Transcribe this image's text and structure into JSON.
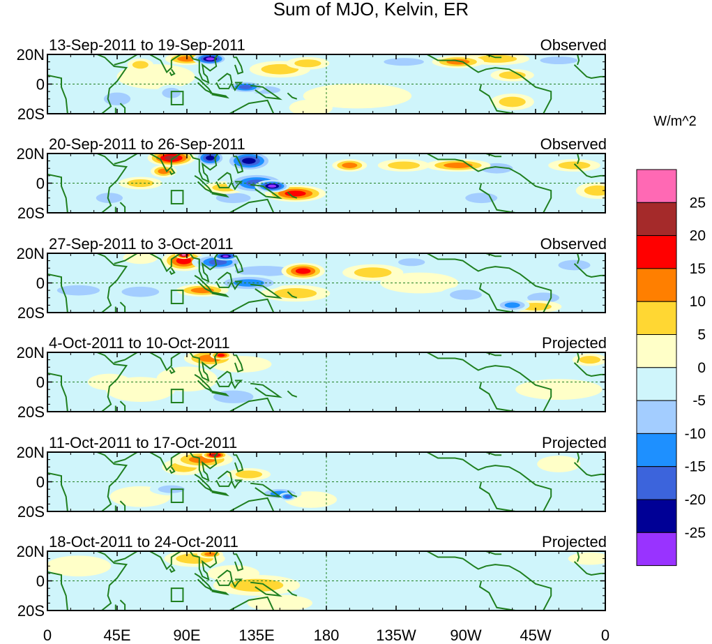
{
  "chart_data": {
    "type": "heatmap",
    "title": "Sum of MJO, Kelvin, ER",
    "units": "W/m^2",
    "x_tick_labels": [
      "0",
      "45E",
      "90E",
      "135E",
      "180",
      "135W",
      "90W",
      "45W",
      "0"
    ],
    "x_ticks_deg_east": [
      0,
      45,
      90,
      135,
      180,
      225,
      270,
      315,
      360
    ],
    "y_tick_labels": [
      "20N",
      "0",
      "20S"
    ],
    "y_ticks_lat": [
      20,
      0,
      -20
    ],
    "lat_range": [
      -20,
      20
    ],
    "lon_range": [
      0,
      360
    ],
    "panels": [
      {
        "period": "13-Sep-2011 to 19-Sep-2011",
        "status": "Observed"
      },
      {
        "period": "20-Sep-2011 to 26-Sep-2011",
        "status": "Observed"
      },
      {
        "period": "27-Sep-2011 to 3-Oct-2011",
        "status": "Observed"
      },
      {
        "period": "4-Oct-2011 to 10-Oct-2011",
        "status": "Projected"
      },
      {
        "period": "11-Oct-2011 to 17-Oct-2011",
        "status": "Projected"
      },
      {
        "period": "18-Oct-2011 to 24-Oct-2011",
        "status": "Projected"
      }
    ],
    "colorbar": {
      "label": "W/m^2",
      "tick_labels": [
        "25",
        "20",
        "15",
        "10",
        "5",
        "0",
        "-5",
        "-10",
        "-15",
        "-20",
        "-25"
      ],
      "bins_top_to_bottom": [
        {
          "range": ">25",
          "color": "#ff69b4"
        },
        {
          "range": "20 to 25",
          "color": "#a52a2a"
        },
        {
          "range": "15 to 20",
          "color": "#ff0000"
        },
        {
          "range": "10 to 15",
          "color": "#ff7f00"
        },
        {
          "range": "5 to 10",
          "color": "#ffd733"
        },
        {
          "range": "0 to 5",
          "color": "#ffffc8"
        },
        {
          "range": "-5 to 0",
          "color": "#cff5fb"
        },
        {
          "range": "-10 to -5",
          "color": "#a3cdff"
        },
        {
          "range": "-15 to -10",
          "color": "#1e90ff"
        },
        {
          "range": "-20 to -15",
          "color": "#3c64dc"
        },
        {
          "range": "-25 to -20",
          "color": "#000096"
        },
        {
          "range": "<-25",
          "color": "#9933ff"
        }
      ]
    },
    "blobs": [
      [
        [
          105,
          17,
          8,
          3,
          -30
        ],
        [
          90,
          17,
          10,
          3,
          15
        ],
        [
          128,
          -2,
          9,
          3,
          -18
        ],
        [
          140,
          -4,
          12,
          3,
          -10
        ],
        [
          150,
          10,
          14,
          4,
          8
        ],
        [
          168,
          14,
          10,
          3,
          10
        ],
        [
          230,
          15,
          15,
          3,
          -8
        ],
        [
          265,
          15,
          12,
          3,
          12
        ],
        [
          290,
          17,
          15,
          3,
          9
        ],
        [
          300,
          6,
          10,
          3,
          8
        ],
        [
          60,
          13,
          6,
          3,
          8
        ],
        [
          80,
          -6,
          7,
          4,
          -8
        ],
        [
          45,
          -10,
          10,
          5,
          -6
        ],
        [
          170,
          -16,
          10,
          4,
          5
        ],
        [
          300,
          -12,
          10,
          4,
          6
        ],
        [
          200,
          -8,
          25,
          6,
          3
        ],
        [
          330,
          16,
          14,
          3,
          -8
        ],
        [
          70,
          5,
          18,
          6,
          3
        ]
      ],
      [
        [
          80,
          17,
          11,
          4,
          24
        ],
        [
          75,
          8,
          6,
          3,
          12
        ],
        [
          105,
          17,
          7,
          4,
          -22
        ],
        [
          130,
          15,
          11,
          5,
          -22
        ],
        [
          135,
          0,
          14,
          5,
          -16
        ],
        [
          145,
          -2,
          8,
          3,
          -26
        ],
        [
          120,
          -10,
          13,
          4,
          -10
        ],
        [
          160,
          -7,
          14,
          4,
          18
        ],
        [
          115,
          -3,
          10,
          3,
          10
        ],
        [
          40,
          -10,
          10,
          4,
          -8
        ],
        [
          15,
          -5,
          12,
          4,
          -5
        ],
        [
          195,
          12,
          8,
          3,
          15
        ],
        [
          265,
          12,
          15,
          3,
          14
        ],
        [
          230,
          12,
          12,
          3,
          10
        ],
        [
          290,
          10,
          12,
          4,
          -8
        ],
        [
          280,
          -10,
          12,
          4,
          -7
        ],
        [
          310,
          -12,
          20,
          4,
          -5
        ],
        [
          355,
          -5,
          10,
          4,
          10
        ],
        [
          60,
          0,
          10,
          3,
          6
        ],
        [
          200,
          -12,
          16,
          4,
          -4
        ],
        [
          340,
          12,
          12,
          3,
          8
        ]
      ],
      [
        [
          88,
          15,
          10,
          5,
          20
        ],
        [
          88,
          19,
          4,
          2,
          30
        ],
        [
          110,
          14,
          12,
          4,
          -20
        ],
        [
          115,
          18,
          6,
          2,
          -30
        ],
        [
          140,
          8,
          22,
          4,
          -10
        ],
        [
          130,
          0,
          16,
          4,
          -12
        ],
        [
          100,
          -5,
          12,
          3,
          12
        ],
        [
          160,
          -7,
          16,
          4,
          10
        ],
        [
          165,
          8,
          10,
          4,
          16
        ],
        [
          210,
          7,
          14,
          4,
          6
        ],
        [
          235,
          14,
          10,
          3,
          -8
        ],
        [
          240,
          0,
          18,
          5,
          4
        ],
        [
          270,
          -8,
          12,
          4,
          -8
        ],
        [
          300,
          -15,
          8,
          3,
          -14
        ],
        [
          320,
          -10,
          12,
          4,
          -10
        ],
        [
          315,
          -16,
          12,
          3,
          10
        ],
        [
          340,
          12,
          12,
          4,
          -8
        ],
        [
          60,
          -6,
          14,
          4,
          -10
        ],
        [
          20,
          -5,
          16,
          4,
          -6
        ],
        [
          60,
          17,
          8,
          3,
          5
        ]
      ],
      [
        [
          105,
          16,
          12,
          4,
          12
        ],
        [
          112,
          18,
          5,
          2,
          18
        ],
        [
          125,
          12,
          14,
          4,
          4
        ],
        [
          90,
          2,
          14,
          6,
          5
        ],
        [
          60,
          -5,
          16,
          6,
          4
        ],
        [
          120,
          -10,
          15,
          5,
          -6
        ],
        [
          150,
          -5,
          18,
          5,
          -3
        ],
        [
          220,
          12,
          30,
          4,
          -4
        ],
        [
          250,
          -4,
          30,
          5,
          -3
        ],
        [
          280,
          -15,
          20,
          5,
          -4
        ],
        [
          15,
          12,
          12,
          4,
          -5
        ],
        [
          330,
          -5,
          20,
          5,
          3
        ],
        [
          350,
          15,
          8,
          3,
          6
        ],
        [
          40,
          0,
          10,
          4,
          3
        ],
        [
          180,
          5,
          20,
          5,
          -2
        ]
      ],
      [
        [
          100,
          15,
          14,
          4,
          14
        ],
        [
          108,
          18,
          6,
          2,
          22
        ],
        [
          88,
          10,
          10,
          4,
          8
        ],
        [
          130,
          5,
          10,
          3,
          9
        ],
        [
          140,
          -2,
          12,
          3,
          -5
        ],
        [
          150,
          -8,
          10,
          3,
          -13
        ],
        [
          155,
          -10,
          4,
          2,
          -20
        ],
        [
          80,
          -5,
          10,
          3,
          -9
        ],
        [
          60,
          -10,
          14,
          5,
          5
        ],
        [
          30,
          5,
          12,
          5,
          -4
        ],
        [
          200,
          8,
          30,
          5,
          -4
        ],
        [
          250,
          -10,
          30,
          5,
          -3
        ],
        [
          300,
          0,
          30,
          5,
          -3
        ],
        [
          330,
          12,
          10,
          4,
          4
        ],
        [
          170,
          -12,
          12,
          4,
          5
        ]
      ],
      [
        [
          95,
          15,
          14,
          4,
          7
        ],
        [
          105,
          18,
          6,
          2,
          13
        ],
        [
          120,
          5,
          12,
          4,
          5
        ],
        [
          135,
          -3,
          20,
          5,
          6
        ],
        [
          85,
          -5,
          10,
          4,
          -5
        ],
        [
          50,
          -5,
          15,
          5,
          -4
        ],
        [
          200,
          0,
          40,
          7,
          -3
        ],
        [
          260,
          5,
          40,
          8,
          -3
        ],
        [
          320,
          -10,
          20,
          5,
          -3
        ],
        [
          20,
          10,
          15,
          5,
          4
        ],
        [
          150,
          -15,
          15,
          4,
          4
        ],
        [
          350,
          15,
          10,
          3,
          4
        ]
      ]
    ]
  }
}
